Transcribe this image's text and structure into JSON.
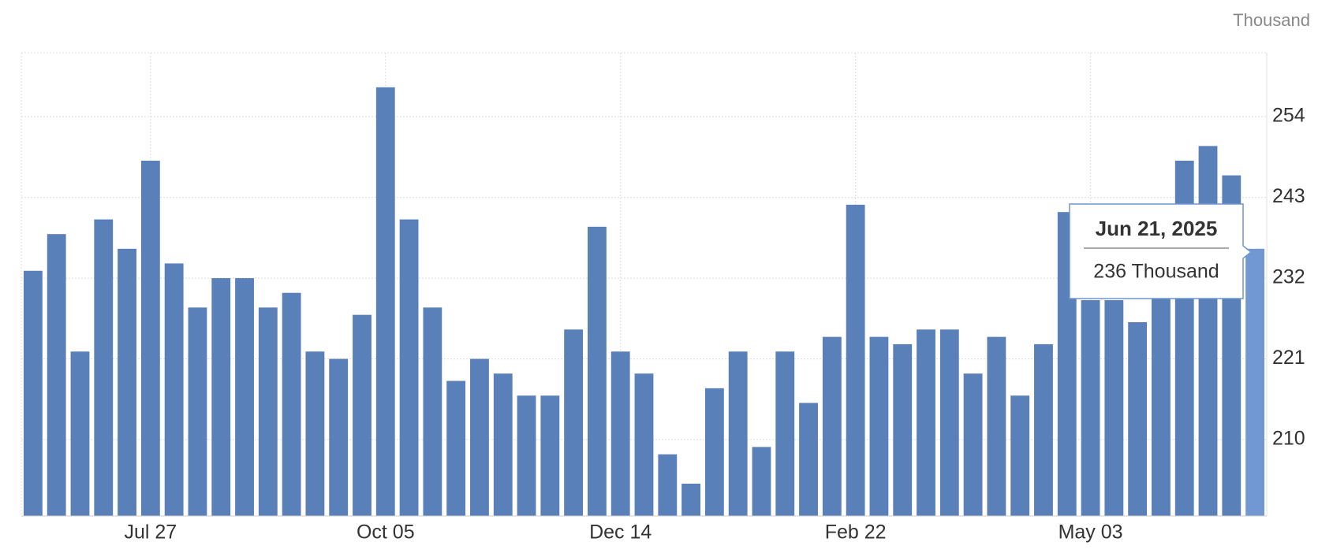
{
  "chart_data": {
    "type": "bar",
    "unit": "Thousand",
    "categories": [
      null,
      null,
      null,
      null,
      null,
      "Jul 27",
      null,
      null,
      null,
      null,
      null,
      null,
      null,
      null,
      null,
      "Oct 05",
      null,
      null,
      null,
      null,
      null,
      null,
      null,
      null,
      null,
      "Dec 14",
      null,
      null,
      null,
      null,
      null,
      null,
      null,
      null,
      null,
      "Feb 22",
      null,
      null,
      null,
      null,
      null,
      null,
      null,
      null,
      null,
      "May 03",
      null,
      null,
      null,
      null,
      null,
      null,
      null
    ],
    "values": [
      233,
      238,
      222,
      240,
      236,
      248,
      234,
      228,
      232,
      232,
      228,
      230,
      222,
      221,
      227,
      258,
      240,
      228,
      218,
      221,
      219,
      216,
      216,
      225,
      239,
      222,
      219,
      208,
      204,
      217,
      222,
      209,
      222,
      215,
      224,
      242,
      224,
      223,
      225,
      225,
      219,
      224,
      216,
      223,
      241,
      229,
      229,
      226,
      233,
      248,
      250,
      246,
      236
    ],
    "color": "#5a80b9",
    "highlight_color": "#7298d4",
    "ylim": [
      199.6,
      262.7
    ],
    "yticks": [
      210,
      221,
      232,
      243,
      254
    ],
    "grid": true,
    "tooltip": {
      "title": "Jun 21, 2025",
      "text": "236 Thousand"
    }
  }
}
